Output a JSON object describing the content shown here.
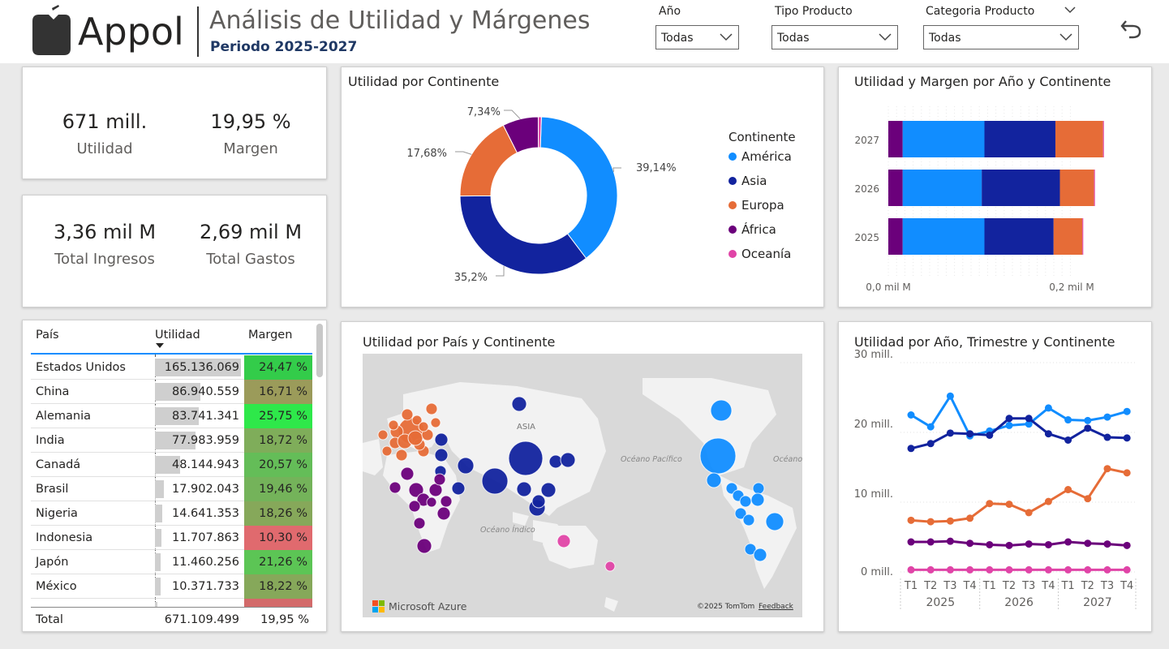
{
  "header": {
    "brand": "Appol",
    "title": "Análisis de Utilidad y Márgenes",
    "subtitle": "Periodo 2025-2027"
  },
  "slicers": [
    {
      "label": "Año",
      "value": "Todas"
    },
    {
      "label": "Tipo Producto",
      "value": "Todas"
    },
    {
      "label": "Categoria Producto",
      "value": "Todas"
    }
  ],
  "kpis": {
    "utilidad": {
      "value": "671 mill.",
      "label": "Utilidad"
    },
    "margen": {
      "value": "19,95 %",
      "label": "Margen"
    },
    "ingresos": {
      "value": "3,36 mil M",
      "label": "Total Ingresos"
    },
    "gastos": {
      "value": "2,69 mil M",
      "label": "Total Gastos"
    }
  },
  "table": {
    "headers": [
      "País",
      "Utilidad",
      "Margen"
    ],
    "rows": [
      {
        "pais": "Estados Unidos",
        "utilidad": "165.136.069",
        "margen": "24,47 %",
        "u": 165136069,
        "color": "#33cc4a"
      },
      {
        "pais": "China",
        "utilidad": "86.940.559",
        "margen": "16,71 %",
        "u": 86940559,
        "color": "#9b9b5a"
      },
      {
        "pais": "Alemania",
        "utilidad": "83.741.341",
        "margen": "25,75 %",
        "u": 83741341,
        "color": "#2ee84a"
      },
      {
        "pais": "India",
        "utilidad": "77.983.959",
        "margen": "18,72 %",
        "u": 77983959,
        "color": "#7fad5a"
      },
      {
        "pais": "Canadá",
        "utilidad": "48.144.943",
        "margen": "20,57 %",
        "u": 48144943,
        "color": "#64bd58"
      },
      {
        "pais": "Brasil",
        "utilidad": "17.902.043",
        "margen": "19,46 %",
        "u": 17902043,
        "color": "#74b35a"
      },
      {
        "pais": "Nigeria",
        "utilidad": "14.641.353",
        "margen": "18,26 %",
        "u": 14641353,
        "color": "#86a85a"
      },
      {
        "pais": "Indonesia",
        "utilidad": "11.707.863",
        "margen": "10,30 %",
        "u": 11707863,
        "color": "#e06a6e"
      },
      {
        "pais": "Japón",
        "utilidad": "11.460.256",
        "margen": "21,26 %",
        "u": 11460256,
        "color": "#5cc555"
      },
      {
        "pais": "México",
        "utilidad": "10.371.733",
        "margen": "18,22 %",
        "u": 10371733,
        "color": "#86a85a"
      }
    ],
    "total": {
      "label": "Total",
      "utilidad": "671.109.499",
      "margen": "19,95 %"
    }
  },
  "donut": {
    "title": "Utilidad por Continente",
    "legend_title": "Continente",
    "chart_data": {
      "type": "pie",
      "categories": [
        "América",
        "Asia",
        "Europa",
        "África",
        "Oceanía"
      ],
      "values": [
        39.14,
        35.2,
        17.68,
        7.34,
        0.64
      ],
      "labels": [
        "39,14%",
        "35,2%",
        "17,68%",
        "7,34%",
        ""
      ],
      "colors": [
        "#118dff",
        "#12239e",
        "#e66c37",
        "#6b007b",
        "#e044a7"
      ]
    }
  },
  "stacked": {
    "title": "Utilidad y Margen por Año y Continente",
    "chart_data": {
      "type": "bar",
      "categories": [
        "2027",
        "2026",
        "2025"
      ],
      "series": [
        {
          "name": "África",
          "values": [
            0.016,
            0.016,
            0.016
          ],
          "color": "#6b007b"
        },
        {
          "name": "América",
          "values": [
            0.091,
            0.088,
            0.091
          ],
          "color": "#118dff"
        },
        {
          "name": "Asia",
          "values": [
            0.079,
            0.087,
            0.077
          ],
          "color": "#12239e"
        },
        {
          "name": "Europa",
          "values": [
            0.053,
            0.038,
            0.032
          ],
          "color": "#e66c37"
        },
        {
          "name": "Oceanía",
          "values": [
            0.001,
            0.001,
            0.001
          ],
          "color": "#e044a7"
        }
      ],
      "xticks": [
        "0,0 mil M",
        "0,2 mil M"
      ],
      "xlim": [
        0,
        0.23
      ]
    }
  },
  "map": {
    "title": "Utilidad por País y Continente",
    "labels": {
      "asia": "ASIA",
      "pacifico": "Océano Pacífico",
      "indico": "Océano Índico",
      "atlantico": "Océano Atlántico"
    },
    "brand": "Microsoft Azure",
    "copyright": "©2025 TomTom",
    "feedback": "Feedback"
  },
  "line": {
    "title": "Utilidad por Año, Trimestre y Continente",
    "chart_data": {
      "type": "line",
      "x": [
        "T1",
        "T2",
        "T3",
        "T4",
        "T1",
        "T2",
        "T3",
        "T4",
        "T1",
        "T2",
        "T3",
        "T4"
      ],
      "years": [
        "2025",
        "2026",
        "2027"
      ],
      "yticks": [
        "30 mill.",
        "20 mill.",
        "10 mill.",
        "0 mill."
      ],
      "ylim": [
        0,
        30
      ],
      "series": [
        {
          "name": "América",
          "color": "#118dff",
          "values": [
            22.5,
            20.8,
            25.2,
            19.5,
            20.2,
            21.0,
            21.2,
            23.5,
            21.8,
            21.7,
            22.2,
            23.0
          ]
        },
        {
          "name": "Asia",
          "color": "#12239e",
          "values": [
            17.7,
            18.4,
            19.9,
            19.8,
            19.6,
            22.0,
            22.0,
            19.8,
            18.9,
            20.6,
            19.3,
            19.2
          ]
        },
        {
          "name": "Europa",
          "color": "#e66c37",
          "values": [
            7.4,
            7.2,
            7.3,
            7.7,
            9.8,
            9.7,
            8.5,
            10.1,
            11.8,
            10.5,
            14.8,
            14.2
          ]
        },
        {
          "name": "África",
          "color": "#6b007b",
          "values": [
            4.3,
            4.3,
            4.4,
            4.1,
            3.9,
            3.8,
            4.0,
            3.9,
            4.3,
            4.1,
            4.0,
            3.8
          ]
        },
        {
          "name": "Oceanía",
          "color": "#e044a7",
          "values": [
            0.3,
            0.3,
            0.3,
            0.3,
            0.3,
            0.3,
            0.3,
            0.3,
            0.3,
            0.3,
            0.3,
            0.3
          ]
        }
      ]
    }
  }
}
